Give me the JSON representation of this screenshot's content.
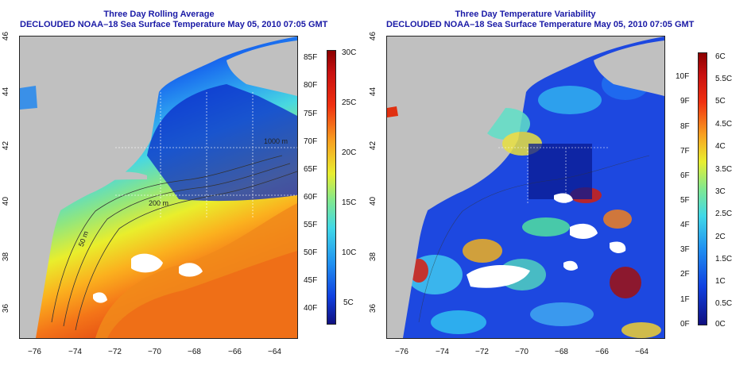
{
  "left_panel": {
    "title_line1": "Three Day Rolling Average",
    "title_line2": "DECLOUDED NOAA–18 Sea Surface Temperature May 05, 2010 07:05 GMT",
    "x_ticks": [
      "−76",
      "−74",
      "−72",
      "−70",
      "−68",
      "−66",
      "−64"
    ],
    "y_ticks": [
      "36",
      "38",
      "40",
      "42",
      "44",
      "46"
    ],
    "contour_labels": [
      "50 m",
      "200 m",
      "1000 m"
    ],
    "colorbar_fahrenheit": [
      "85F",
      "80F",
      "75F",
      "70F",
      "65F",
      "60F",
      "55F",
      "50F",
      "45F",
      "40F"
    ],
    "colorbar_celsius": [
      "30C",
      "25C",
      "20C",
      "15C",
      "10C",
      "5C"
    ]
  },
  "right_panel": {
    "title_line1": "Three Day Temperature Variability",
    "title_line2": "DECLOUDED NOAA–18 Sea Surface Temperature May 05, 2010 07:05 GMT",
    "x_ticks": [
      "−76",
      "−74",
      "−72",
      "−70",
      "−68",
      "−66",
      "−64"
    ],
    "y_ticks": [
      "36",
      "38",
      "40",
      "42",
      "44",
      "46"
    ],
    "colorbar_fahrenheit": [
      "10F",
      "9F",
      "8F",
      "7F",
      "6F",
      "5F",
      "4F",
      "3F",
      "2F",
      "1F",
      "0F"
    ],
    "colorbar_celsius": [
      "6C",
      "5.5C",
      "5C",
      "4.5C",
      "4C",
      "3.5C",
      "3C",
      "2.5C",
      "2C",
      "1.5C",
      "1C",
      "0.5C",
      "0C"
    ]
  },
  "colors": {
    "title": "#1a1aa6",
    "land": "#c0c0c0",
    "cloud": "#ffffff"
  }
}
